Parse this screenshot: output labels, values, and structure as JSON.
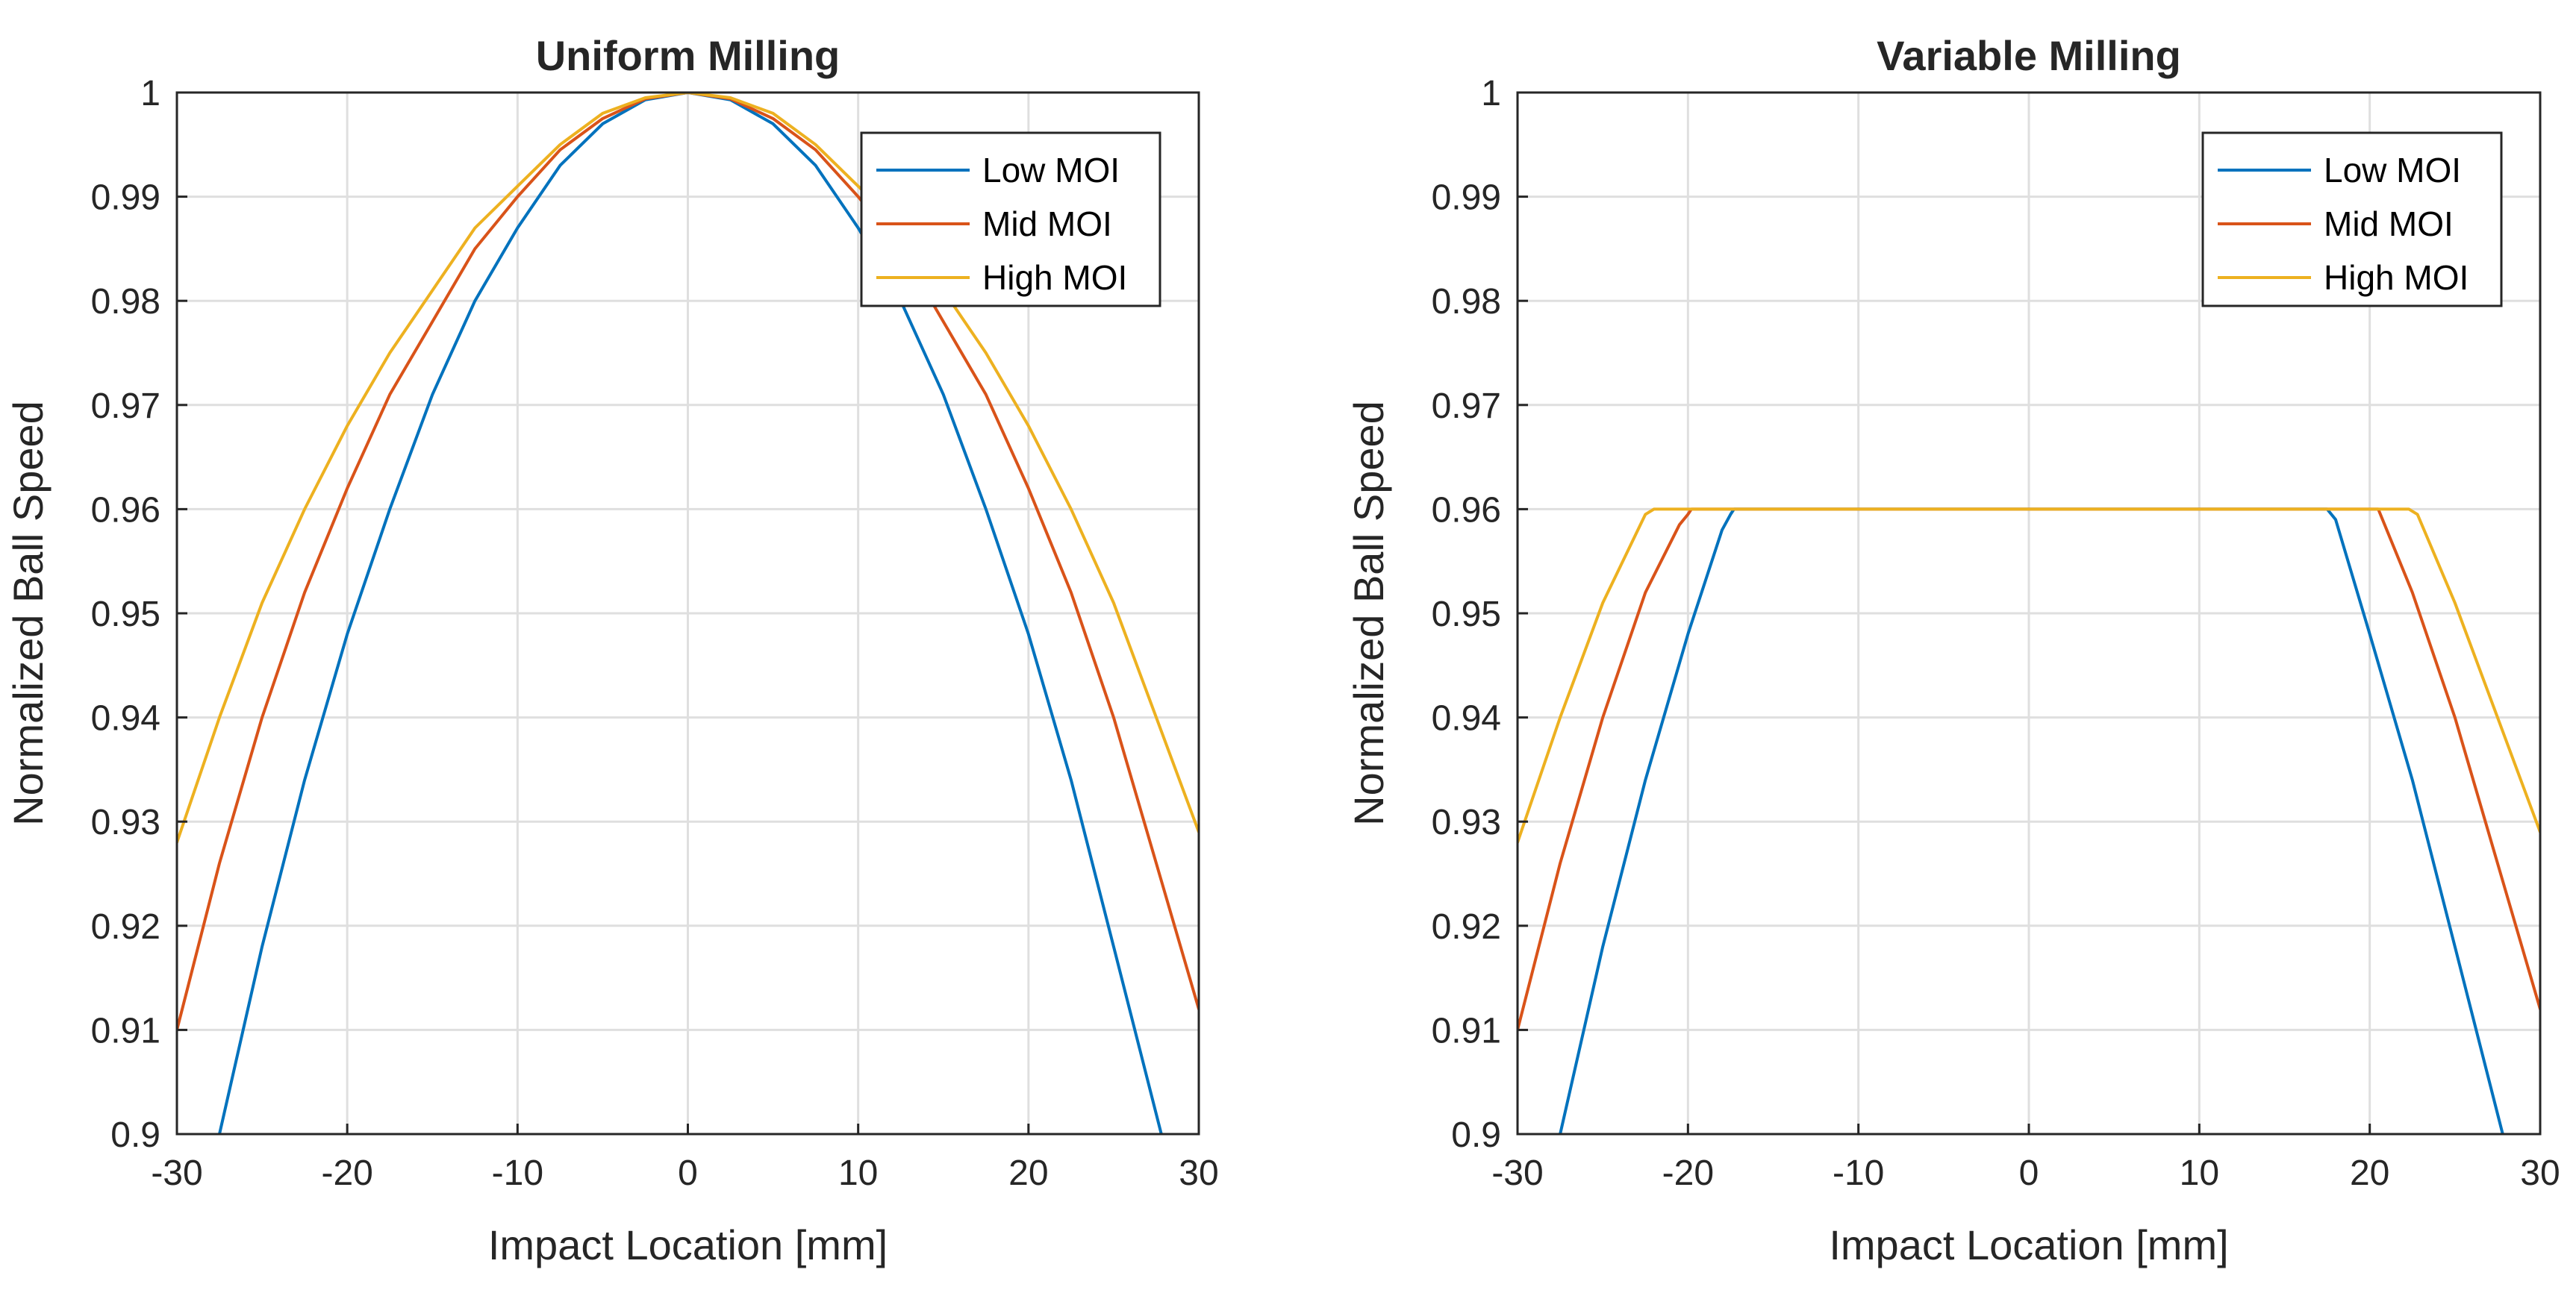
{
  "chart_data": [
    {
      "type": "line",
      "title": "Uniform Milling",
      "xlabel": "Impact Location [mm]",
      "ylabel": "Normalized Ball Speed",
      "xlim": [
        -30,
        30
      ],
      "ylim": [
        0.9,
        1
      ],
      "xticks": [
        -30,
        -20,
        -10,
        0,
        10,
        20,
        30
      ],
      "xtick_labels": [
        "-30",
        "-20",
        "-10",
        "0",
        "10",
        "20",
        "30"
      ],
      "yticks": [
        0.9,
        0.91,
        0.92,
        0.93,
        0.94,
        0.95,
        0.96,
        0.97,
        0.98,
        0.99,
        1
      ],
      "ytick_labels": [
        "0.9",
        "0.91",
        "0.92",
        "0.93",
        "0.94",
        "0.95",
        "0.96",
        "0.97",
        "0.98",
        "0.99",
        "1"
      ],
      "grid": true,
      "legend_position": "top-right",
      "series": [
        {
          "name": "Low MOI",
          "color": "#0072BD",
          "x": [
            -27.5,
            -25,
            -22.5,
            -20,
            -17.5,
            -15,
            -12.5,
            -10,
            -7.5,
            -5,
            -2.5,
            0,
            2.5,
            5,
            7.5,
            10,
            12.5,
            15,
            17.5,
            20,
            22.5,
            25,
            27.8
          ],
          "y": [
            0.9,
            0.918,
            0.934,
            0.948,
            0.96,
            0.971,
            0.98,
            0.987,
            0.993,
            0.997,
            0.9993,
            1,
            0.9993,
            0.997,
            0.993,
            0.987,
            0.98,
            0.971,
            0.96,
            0.948,
            0.934,
            0.918,
            0.9
          ]
        },
        {
          "name": "Mid MOI",
          "color": "#D95319",
          "x": [
            -30,
            -27.5,
            -25,
            -22.5,
            -20,
            -17.5,
            -15,
            -12.5,
            -10,
            -7.5,
            -5,
            -2.5,
            0,
            2.5,
            5,
            7.5,
            10,
            12.5,
            15,
            17.5,
            20,
            22.5,
            25,
            27.5,
            30
          ],
          "y": [
            0.91,
            0.926,
            0.94,
            0.952,
            0.962,
            0.971,
            0.978,
            0.985,
            0.99,
            0.9945,
            0.9975,
            0.9994,
            1,
            0.9994,
            0.9975,
            0.9945,
            0.99,
            0.985,
            0.978,
            0.971,
            0.962,
            0.952,
            0.94,
            0.926,
            0.912
          ]
        },
        {
          "name": "High MOI",
          "color": "#EDB120",
          "x": [
            -30,
            -27.5,
            -25,
            -22.5,
            -20,
            -17.5,
            -15,
            -12.5,
            -10,
            -7.5,
            -5,
            -2.5,
            0,
            2.5,
            5,
            7.5,
            10,
            12.5,
            15,
            17.5,
            20,
            22.5,
            25,
            27.5,
            30
          ],
          "y": [
            0.928,
            0.94,
            0.951,
            0.96,
            0.968,
            0.975,
            0.981,
            0.987,
            0.991,
            0.995,
            0.998,
            0.9995,
            1,
            0.9995,
            0.998,
            0.995,
            0.991,
            0.987,
            0.981,
            0.975,
            0.968,
            0.96,
            0.951,
            0.94,
            0.929
          ]
        }
      ]
    },
    {
      "type": "line",
      "title": "Variable Milling",
      "xlabel": "Impact Location [mm]",
      "ylabel": "Normalized Ball Speed",
      "xlim": [
        -30,
        30
      ],
      "ylim": [
        0.9,
        1
      ],
      "xticks": [
        -30,
        -20,
        -10,
        0,
        10,
        20,
        30
      ],
      "xtick_labels": [
        "-30",
        "-20",
        "-10",
        "0",
        "10",
        "20",
        "30"
      ],
      "yticks": [
        0.9,
        0.91,
        0.92,
        0.93,
        0.94,
        0.95,
        0.96,
        0.97,
        0.98,
        0.99,
        1
      ],
      "ytick_labels": [
        "0.9",
        "0.91",
        "0.92",
        "0.93",
        "0.94",
        "0.95",
        "0.96",
        "0.97",
        "0.98",
        "0.99",
        "1"
      ],
      "grid": true,
      "legend_position": "top-right",
      "series": [
        {
          "name": "Low MOI",
          "color": "#0072BD",
          "x": [
            -27.5,
            -25,
            -22.5,
            -20,
            -18,
            -17.5,
            -17.3,
            17.5,
            18,
            20,
            22.5,
            25,
            27.8
          ],
          "y": [
            0.9,
            0.918,
            0.934,
            0.948,
            0.958,
            0.9595,
            0.96,
            0.96,
            0.959,
            0.948,
            0.934,
            0.918,
            0.9
          ]
        },
        {
          "name": "Mid MOI",
          "color": "#D95319",
          "x": [
            -30,
            -27.5,
            -25,
            -22.5,
            -20.5,
            -20,
            -19.8,
            20.5,
            22.5,
            25,
            27.5,
            30
          ],
          "y": [
            0.91,
            0.926,
            0.94,
            0.952,
            0.9585,
            0.9595,
            0.96,
            0.96,
            0.952,
            0.94,
            0.926,
            0.912
          ]
        },
        {
          "name": "High MOI",
          "color": "#EDB120",
          "x": [
            -30,
            -27.5,
            -25,
            -22.5,
            -22,
            22.3,
            22.8,
            25,
            27.5,
            30
          ],
          "y": [
            0.928,
            0.94,
            0.951,
            0.9595,
            0.96,
            0.96,
            0.9595,
            0.951,
            0.94,
            0.929
          ]
        }
      ]
    }
  ]
}
